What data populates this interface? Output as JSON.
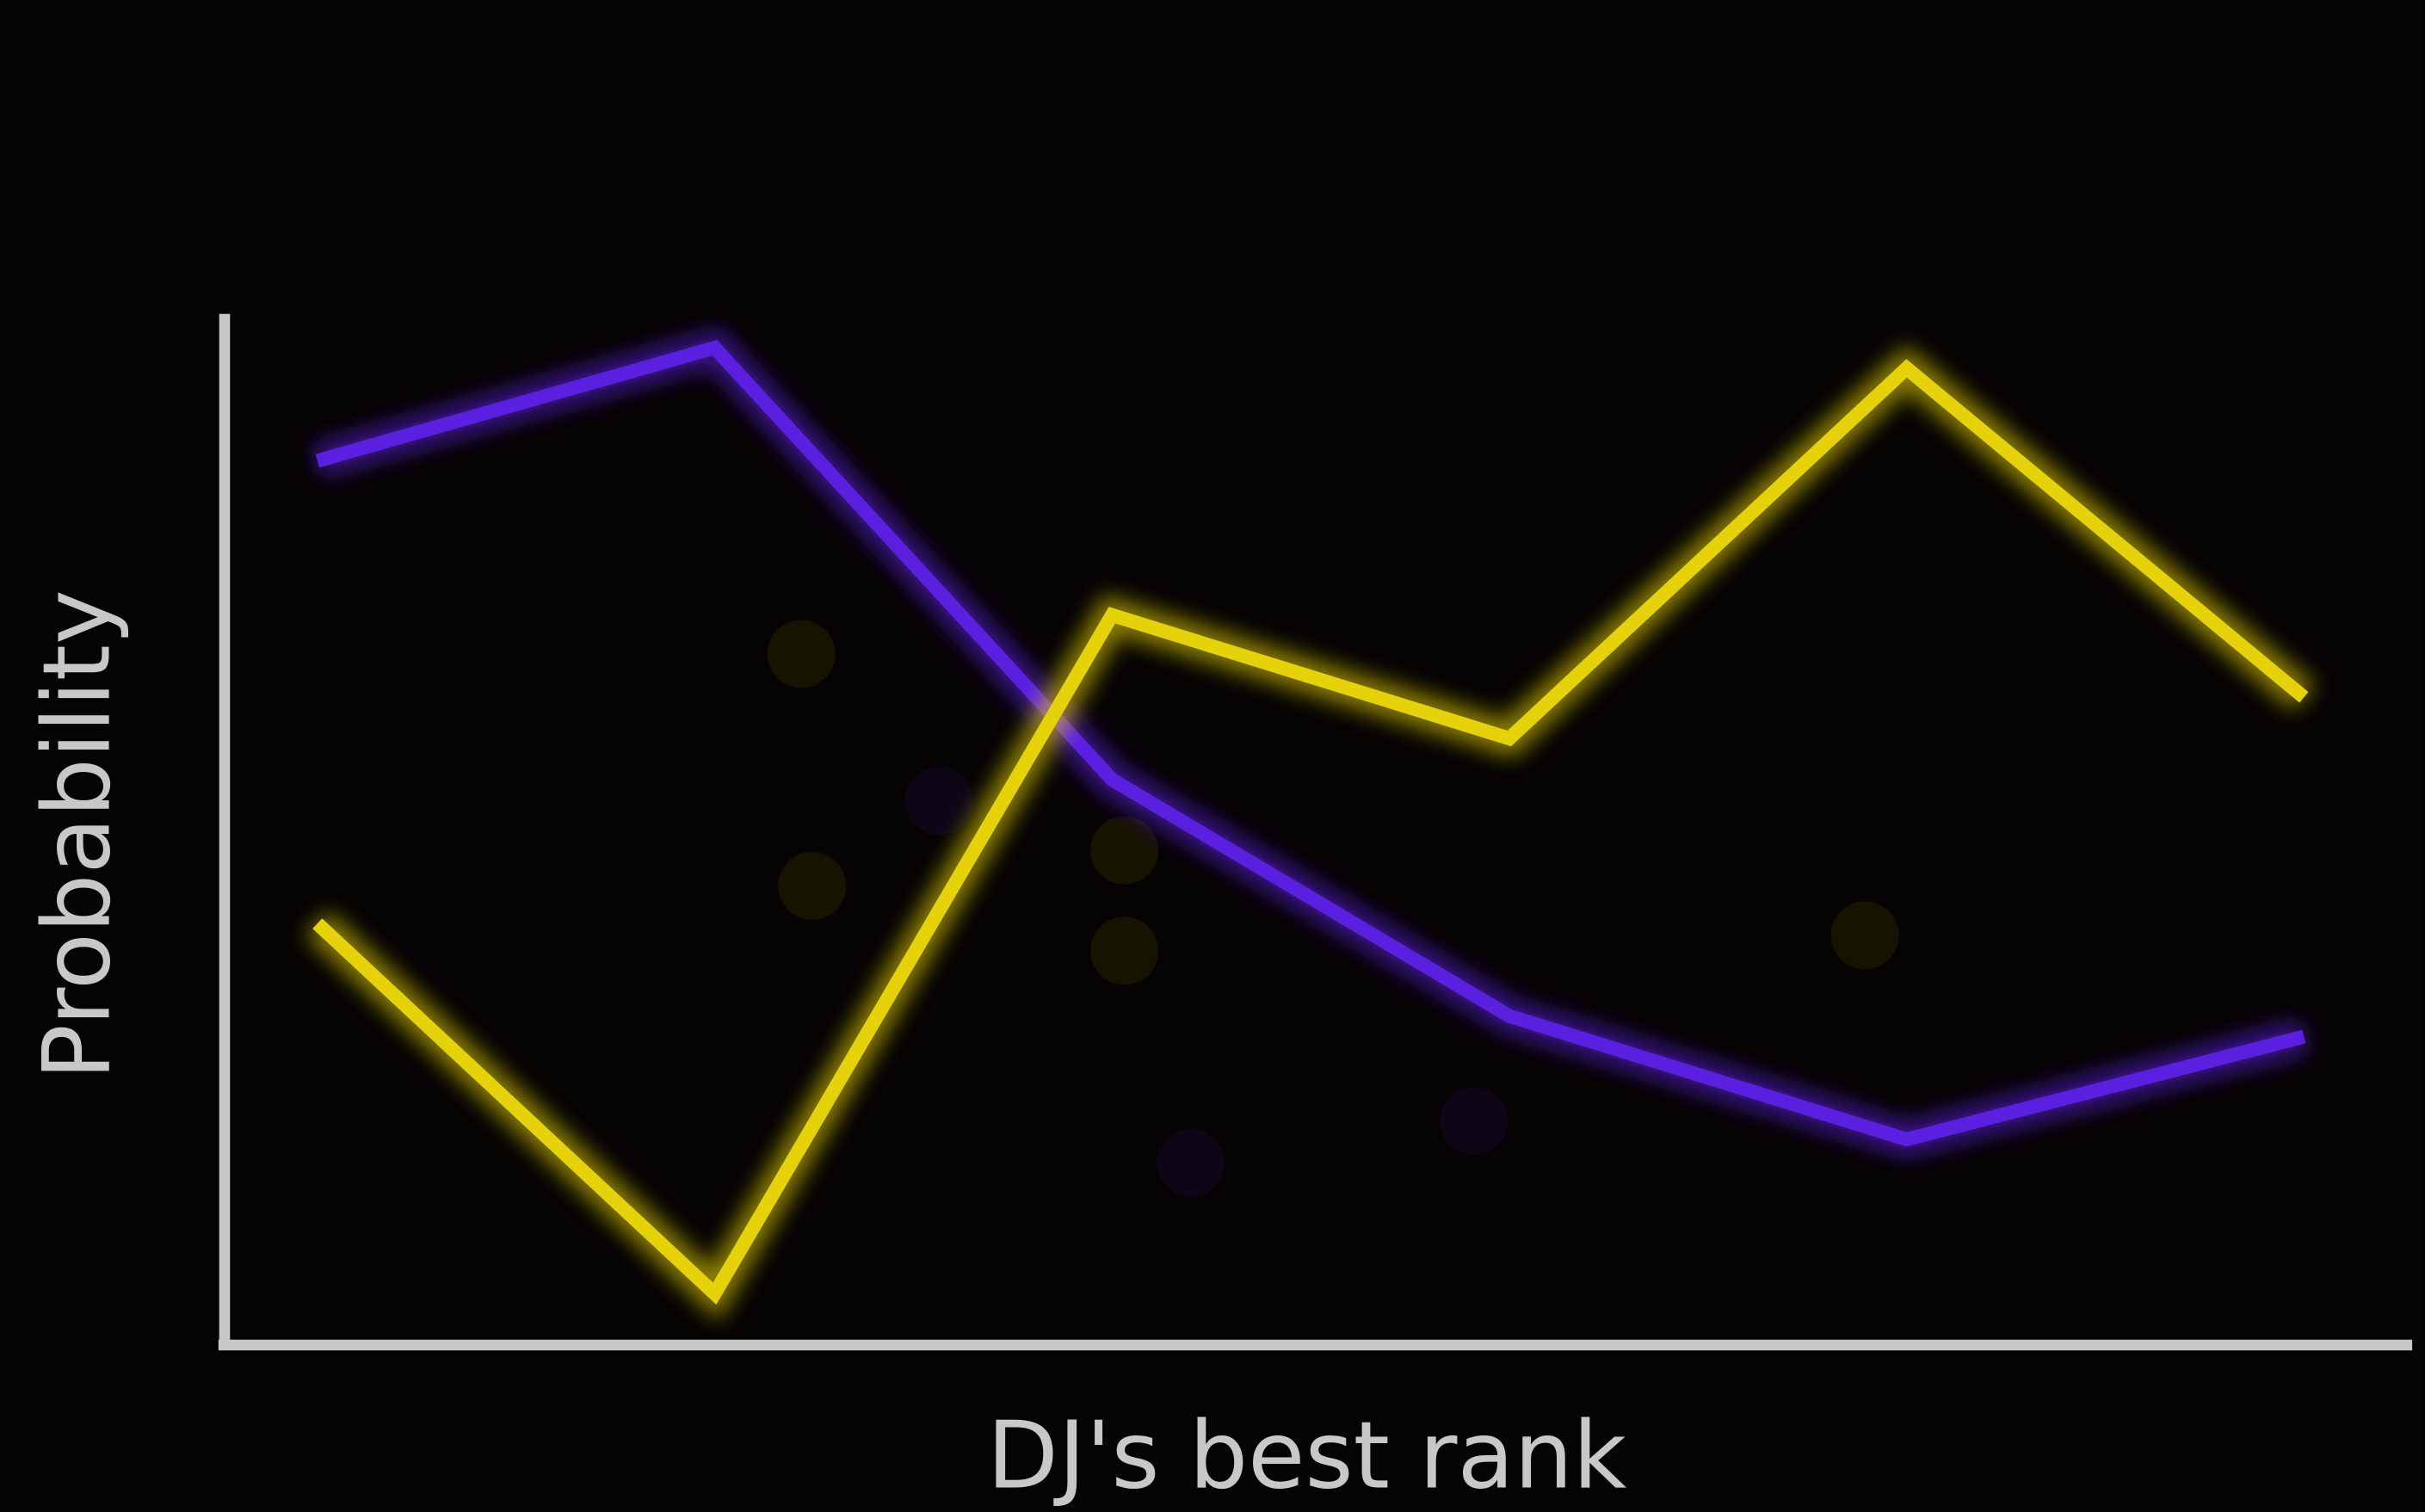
{
  "chart_data": {
    "type": "line",
    "x_label": "DJ's best rank",
    "y_label": "Probability",
    "categories": [
      null,
      null,
      null,
      null,
      null,
      null
    ],
    "series": [
      {
        "color": "#5b1fe0",
        "values": [
          0.86,
          0.97,
          0.55,
          0.32,
          0.2,
          0.3
        ]
      },
      {
        "color": "#e6d20a",
        "values": [
          0.41,
          0.05,
          0.71,
          0.59,
          0.95,
          0.63
        ]
      }
    ],
    "ylim": [
      0,
      1
    ]
  }
}
